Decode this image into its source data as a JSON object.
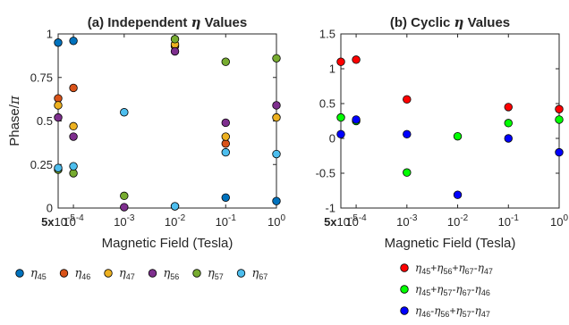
{
  "chart_data": [
    {
      "type": "scatter",
      "title": "(a) Independent η Values",
      "xlabel": "Magnetic Field (Tesla)",
      "ylabel": "Phase/π",
      "x_scale": "log",
      "x_tick_labels": [
        "5x10-5",
        "10-4",
        "10-3",
        "10-2",
        "10-1",
        "100"
      ],
      "x": [
        5e-05,
        0.0001,
        0.001,
        0.01,
        0.1,
        1
      ],
      "xlim": [
        5e-05,
        1
      ],
      "ylim": [
        0,
        1
      ],
      "y_ticks": [
        0,
        0.25,
        0.5,
        0.75,
        1
      ],
      "y_tick_labels": [
        "0",
        "0.25",
        "0.5",
        "0.75",
        "1"
      ],
      "grid": false,
      "legend_position": "bottom",
      "series": [
        {
          "name": "η45",
          "sub": "45",
          "color": "#0072BD",
          "values": [
            0.95,
            0.96,
            null,
            0.01,
            0.06,
            0.04
          ]
        },
        {
          "name": "η46",
          "sub": "46",
          "color": "#D95319",
          "values": [
            0.63,
            0.69,
            null,
            0.93,
            0.37,
            null
          ]
        },
        {
          "name": "η47",
          "sub": "47",
          "color": "#EDB120",
          "values": [
            0.59,
            0.47,
            null,
            0.94,
            0.41,
            0.52
          ]
        },
        {
          "name": "η56",
          "sub": "56",
          "color": "#7E2F8E",
          "values": [
            0.52,
            0.41,
            0.005,
            0.9,
            0.49,
            0.59
          ]
        },
        {
          "name": "η57",
          "sub": "57",
          "color": "#77AC30",
          "values": [
            0.22,
            0.2,
            0.07,
            0.97,
            0.84,
            0.86
          ]
        },
        {
          "name": "η67",
          "sub": "67",
          "color": "#4DBEEE",
          "values": [
            0.23,
            0.24,
            0.55,
            0.01,
            0.32,
            0.31
          ]
        }
      ]
    },
    {
      "type": "scatter",
      "title": "(b) Cyclic η Values",
      "xlabel": "Magnetic Field (Tesla)",
      "ylabel": "",
      "x_scale": "log",
      "x_tick_labels": [
        "5x10-5",
        "10-4",
        "10-3",
        "10-2",
        "10-1",
        "100"
      ],
      "x": [
        5e-05,
        0.0001,
        0.001,
        0.01,
        0.1,
        1
      ],
      "xlim": [
        5e-05,
        1
      ],
      "ylim": [
        -1,
        1.5
      ],
      "y_ticks": [
        -1,
        -0.5,
        0,
        0.5,
        1,
        1.5
      ],
      "y_tick_labels": [
        "-1",
        "-0.5",
        "0",
        "0.5",
        "1",
        "1.5"
      ],
      "grid": false,
      "legend_position": "bottom",
      "series": [
        {
          "name": "η45+η56+η67-η47",
          "color": "#FF0000",
          "values": [
            1.1,
            1.13,
            0.56,
            null,
            0.45,
            0.42
          ]
        },
        {
          "name": "η45+η57-η67-η46",
          "color": "#00FF00",
          "values": [
            0.3,
            0.25,
            -0.49,
            0.03,
            0.22,
            0.27
          ]
        },
        {
          "name": "η46-η56+η57-η47",
          "color": "#0000FF",
          "values": [
            0.06,
            0.27,
            0.06,
            -0.81,
            0.0,
            -0.2
          ]
        }
      ]
    }
  ]
}
